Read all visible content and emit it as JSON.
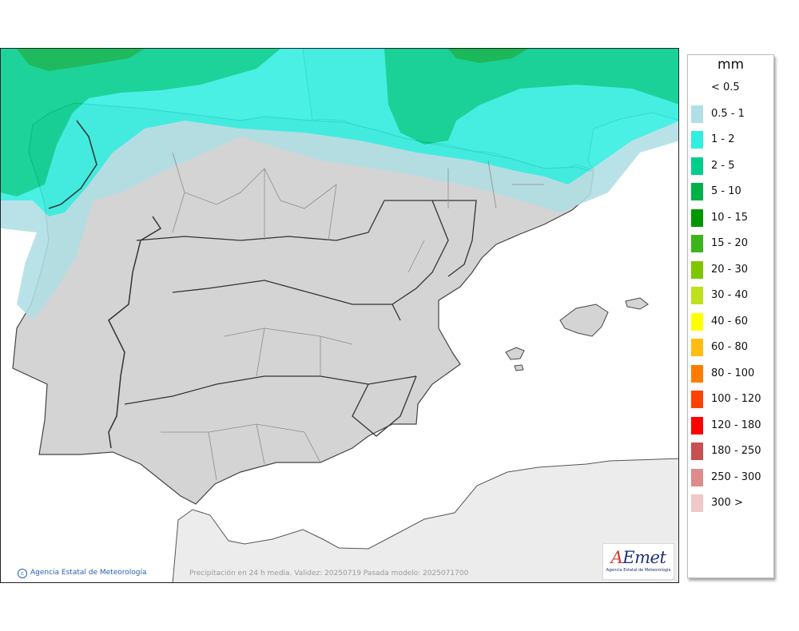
{
  "map": {
    "credit": "Agencia Estatal de Meteorología",
    "caption": "Precipitación en 24 h media. Validez: 20250719 Pasada modelo: 2025071700",
    "logo_text_a": "A",
    "logo_text_rest": "Emet",
    "logo_subtitle": "Agencia Estatal de Meteorología",
    "colors": {
      "sea": "#ffffff",
      "land_iberia": "#d4d4d4",
      "land_other": "#ececec",
      "border": "#333333",
      "province_line": "#8c8c8c"
    }
  },
  "legend": {
    "unit": "mm",
    "items": [
      {
        "label": "< 0.5",
        "color": ""
      },
      {
        "label": "0.5 - 1",
        "color": "#b0dfe5"
      },
      {
        "label": "1 - 2",
        "color": "#30efe0"
      },
      {
        "label": "2 - 5",
        "color": "#00ce8c"
      },
      {
        "label": "5 - 10",
        "color": "#00b147"
      },
      {
        "label": "10 - 15",
        "color": "#009800"
      },
      {
        "label": "15 - 20",
        "color": "#3db51a"
      },
      {
        "label": "20 - 30",
        "color": "#7ec700"
      },
      {
        "label": "30 - 40",
        "color": "#bfe01c"
      },
      {
        "label": "40 - 60",
        "color": "#ffff00"
      },
      {
        "label": "60 - 80",
        "color": "#ffbc12"
      },
      {
        "label": "80 - 100",
        "color": "#ff7c00"
      },
      {
        "label": "100 - 120",
        "color": "#ff4000"
      },
      {
        "label": "120 - 180",
        "color": "#ff0000"
      },
      {
        "label": "180 - 250",
        "color": "#c85050"
      },
      {
        "label": "250 - 300",
        "color": "#dc8c8c"
      },
      {
        "label": "300 >",
        "color": "#f0c8c8"
      }
    ]
  }
}
